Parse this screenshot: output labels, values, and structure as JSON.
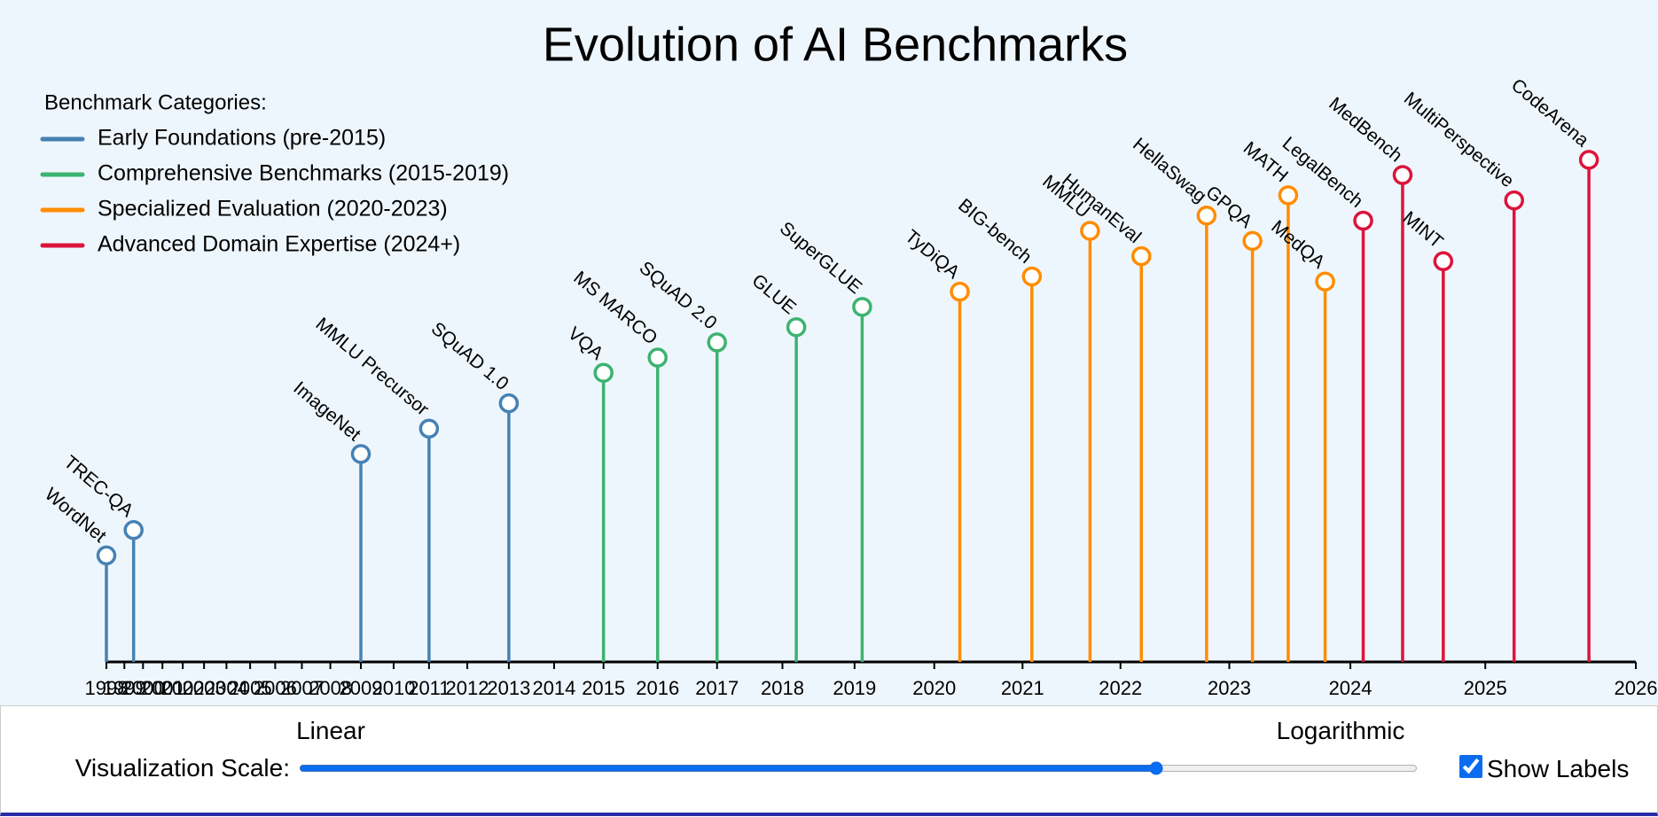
{
  "chart_data": {
    "type": "timeline",
    "title": "Evolution of AI Benchmarks",
    "legend_title": "Benchmark Categories:",
    "xlim": [
      1998,
      2026
    ],
    "ylim": [
      0,
      100
    ],
    "xticks": [
      1998,
      1999,
      2000,
      2001,
      2002,
      2003,
      2004,
      2005,
      2006,
      2007,
      2008,
      2009,
      2010,
      2011,
      2012,
      2013,
      2014,
      2015,
      2016,
      2017,
      2018,
      2019,
      2020,
      2021,
      2022,
      2023,
      2024,
      2025,
      2026
    ],
    "series": [
      {
        "name": "Early Foundations (pre-2015)",
        "color": "#4682b4",
        "categories": [
          "WordNet",
          "TREC-QA",
          "ImageNet",
          "MMLU Precursor",
          "SQuAD 1.0"
        ],
        "x": [
          1998,
          1999.5,
          2009,
          2011,
          2013
        ],
        "values": [
          21,
          26,
          41,
          46,
          51
        ]
      },
      {
        "name": "Comprehensive Benchmarks (2015-2019)",
        "color": "#3cb371",
        "categories": [
          "VQA",
          "MS MARCO",
          "SQuAD 2.0",
          "GLUE",
          "SuperGLUE"
        ],
        "x": [
          2015,
          2016,
          2017,
          2018.2,
          2019.1
        ],
        "values": [
          57,
          60,
          63,
          66,
          70
        ]
      },
      {
        "name": "Specialized Evaluation (2020-2023)",
        "color": "#ff8c00",
        "categories": [
          "TyDiQA",
          "BIG-bench",
          "MMLU",
          "HumanEval",
          "HellaSwag",
          "GPQA",
          "MATH",
          "MedQA"
        ],
        "x": [
          2020.3,
          2021.1,
          2021.7,
          2022.2,
          2022.8,
          2023.2,
          2023.5,
          2023.8
        ],
        "values": [
          73,
          76,
          85,
          80,
          88,
          83,
          92,
          75
        ]
      },
      {
        "name": "Advanced Domain Expertise (2024+)",
        "color": "#dc143c",
        "categories": [
          "LegalBench",
          "MedBench",
          "MINT",
          "MultiPerspective",
          "CodeArena"
        ],
        "x": [
          2024.1,
          2024.4,
          2024.7,
          2025.2,
          2025.7
        ],
        "values": [
          87,
          96,
          79,
          91,
          99
        ]
      }
    ]
  },
  "controls": {
    "linear_label": "Linear",
    "log_label": "Logarithmic",
    "scale_label": "Visualization Scale:",
    "scale_mix": 77,
    "show_labels_label": "Show Labels",
    "show_labels": true
  }
}
